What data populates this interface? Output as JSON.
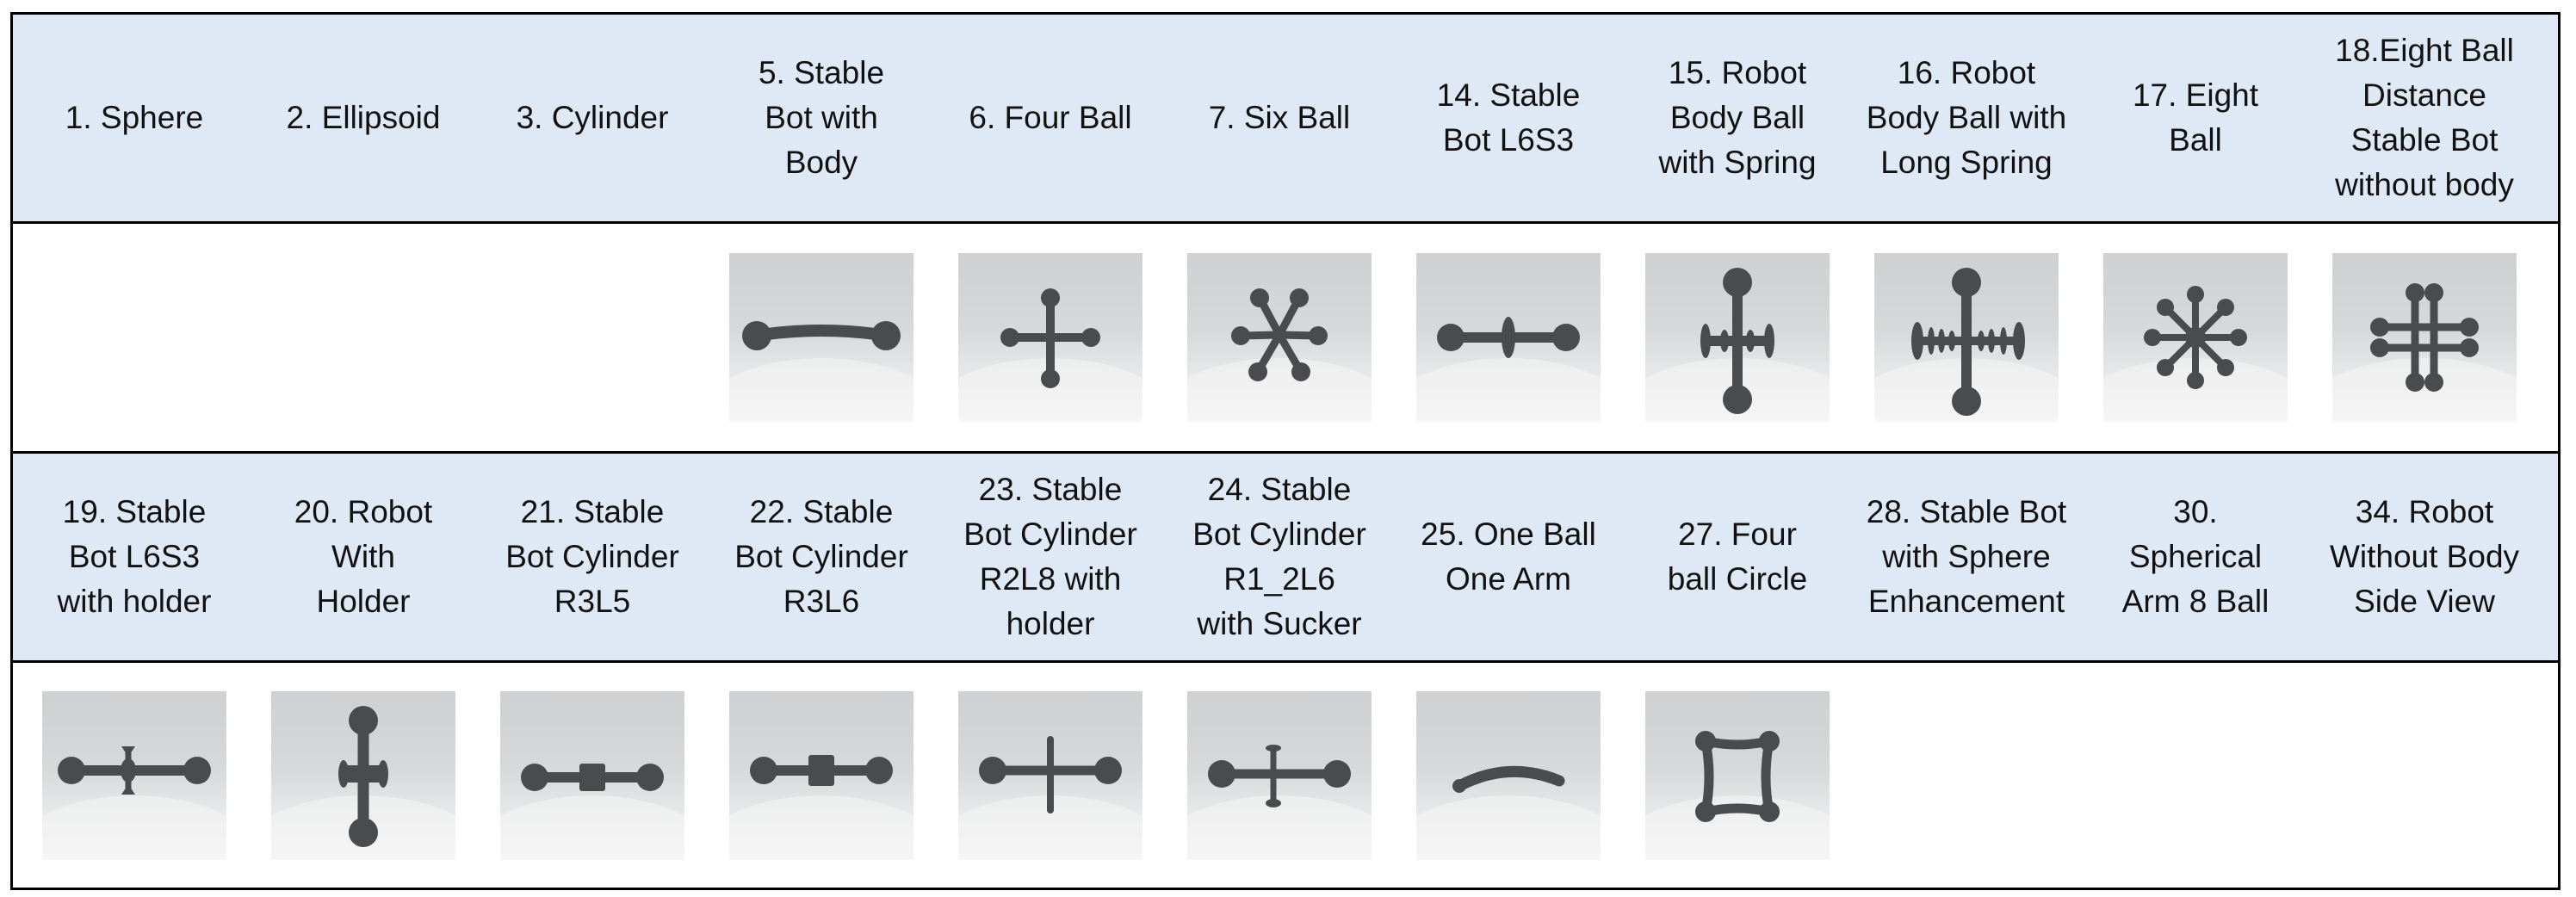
{
  "rows": [
    {
      "headers": [
        "1. Sphere",
        "2. Ellipsoid",
        "3. Cylinder",
        "5. Stable\nBot with\nBody",
        "6. Four Ball",
        "7. Six Ball",
        "14. Stable\nBot L6S3",
        "15. Robot\nBody Ball\nwith Spring",
        "16. Robot\nBody Ball with\nLong Spring",
        "17. Eight\nBall",
        "18.Eight Ball\nDistance\nStable Bot\nwithout body"
      ],
      "images": [
        "",
        "",
        "",
        "dumbbell-render",
        "four-ball-cross-render",
        "six-ball-star-render",
        "dumbbell-with-disk-render",
        "vertical-cross-with-spring-render",
        "cross-with-long-spring-render",
        "eight-ball-star-render",
        "eight-ball-double-cross-render"
      ]
    },
    {
      "headers": [
        "19. Stable\nBot L6S3\nwith holder",
        "20. Robot\nWith\nHolder",
        "21. Stable\nBot Cylinder\nR3L5",
        "22.  Stable\nBot Cylinder\nR3L6",
        "23. Stable\nBot Cylinder\nR2L8 with\nholder",
        "24. Stable\nBot Cylinder\nR1_2L6\nwith Sucker",
        "25. One Ball\nOne Arm",
        "27. Four\nball Circle",
        "28. Stable Bot\nwith Sphere\nEnhancement",
        "30.\nSpherical\nArm 8 Ball",
        "34. Robot\nWithout Body\nSide View"
      ],
      "images": [
        "dumbbell-with-holder-render",
        "vertical-bot-with-holder-render",
        "cylinder-bot-r3l5-render",
        "cylinder-bot-r3l6-render",
        "cylinder-bot-r2l8-holder-render",
        "cylinder-bot-sucker-render",
        "curved-arm-render",
        "four-ball-square-render",
        "",
        "",
        ""
      ]
    }
  ],
  "colors": {
    "header_bg": "#dfe9f5",
    "border": "#000000",
    "text": "#111111",
    "model": "#4a4b4d"
  }
}
